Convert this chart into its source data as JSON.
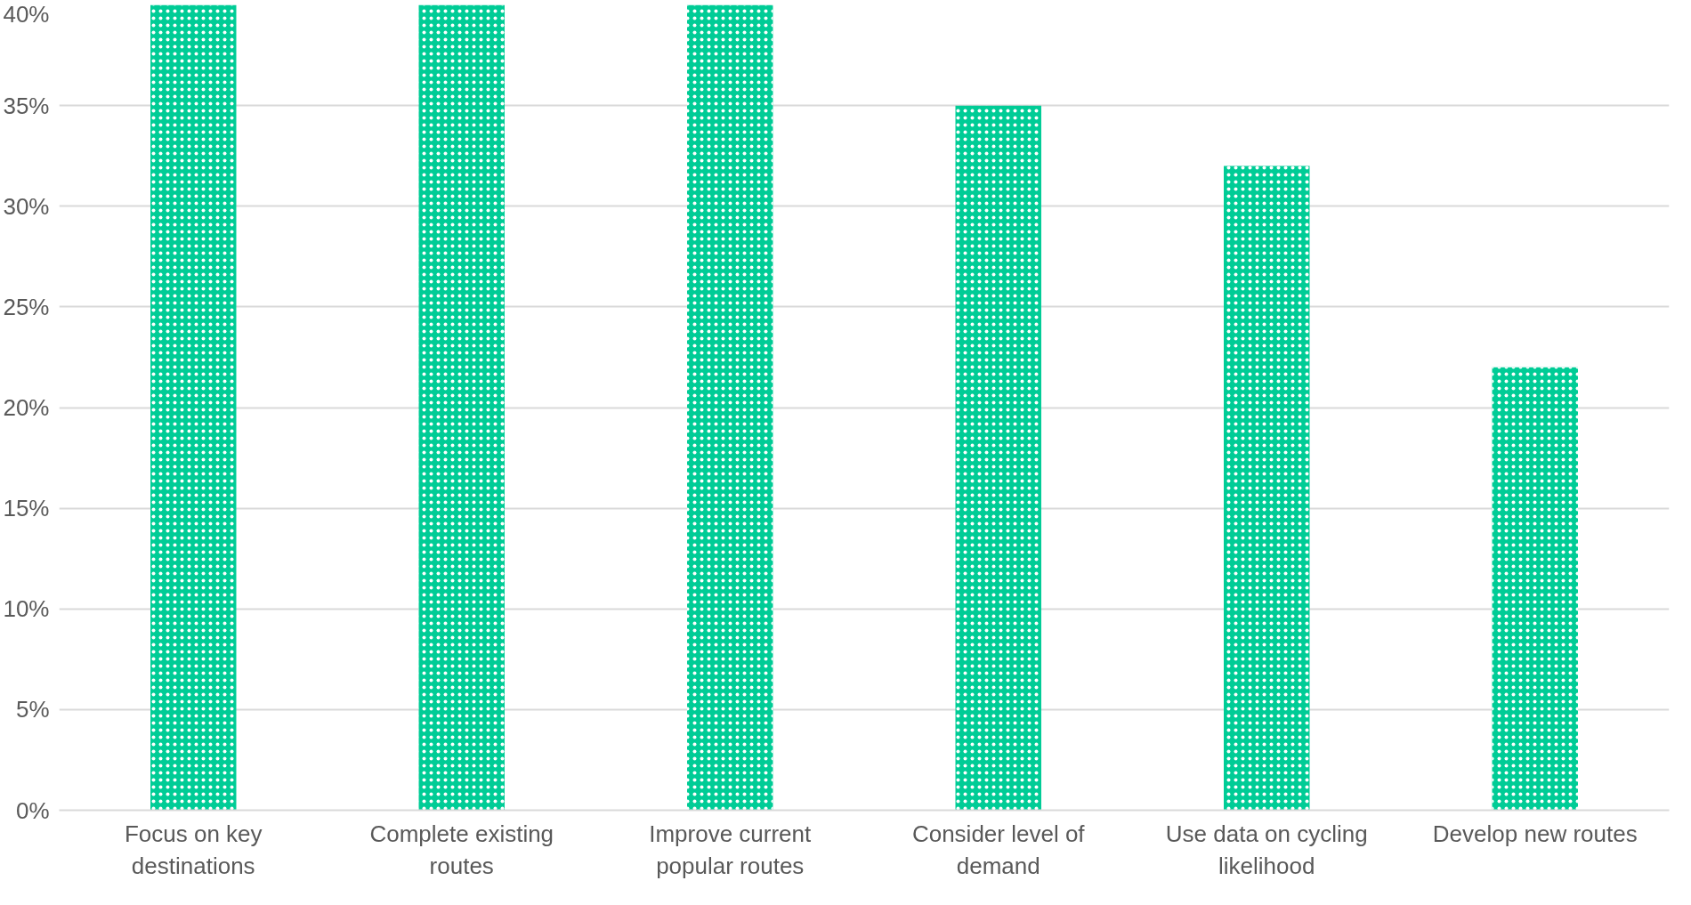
{
  "chart_data": {
    "type": "bar",
    "categories": [
      "Focus on key destinations",
      "Complete existing routes",
      "Improve current popular routes",
      "Consider level of demand",
      "Use data on cycling likelihood",
      "Develop new routes"
    ],
    "values": [
      40,
      40,
      40,
      35,
      32,
      22
    ],
    "color": "#00cc96",
    "ylim": [
      0,
      40
    ],
    "yticks": [
      {
        "value": 0,
        "label": "0%"
      },
      {
        "value": 5,
        "label": "5%"
      },
      {
        "value": 10,
        "label": "10%"
      },
      {
        "value": 15,
        "label": "15%"
      },
      {
        "value": 20,
        "label": "20%"
      },
      {
        "value": 25,
        "label": "25%"
      },
      {
        "value": 30,
        "label": "30%"
      },
      {
        "value": 35,
        "label": "35%"
      },
      {
        "value": 40,
        "label": "40%"
      }
    ],
    "grid": "y"
  }
}
